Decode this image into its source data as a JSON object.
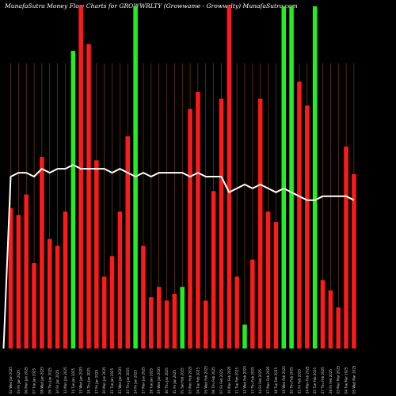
{
  "title": "MunafaSutra  Money Flow  Charts for GROWWRLTY                              (Growwame  -  Growwrlty)  MunafaSutra.com",
  "colors": {
    "background": "#000000",
    "up": "#22ee22",
    "down": "#ff1a1a",
    "line": "#ffffff",
    "grid": "#8a4a00"
  },
  "chart_data": {
    "type": "bar",
    "title": "MunafaSutra  Money Flow  Charts for GROWWRLTY                              (Growwame  -  Growwrlty)  MunafaSutra.com",
    "categories": [
      "02 Wed Jan 2025",
      "03 Fri Jan 2025",
      "06 Mon Jan 2025",
      "07 Tue Jan 2025",
      "08 Wed Jan 2025",
      "09 Thu Jan 2025",
      "10 Fri Jan 2025",
      "13 Mon Jan 2025",
      "14 Tue Jan 2025",
      "15 Wed Jan 2025",
      "16 Thu Jan 2025",
      "17 Fri Jan 2025",
      "20 Mon Jan 2025",
      "21 Tue Jan 2025",
      "22 Wed Jan 2025",
      "23 Thu Jan 2025",
      "24 Fri Jan 2025",
      "27 Mon Jan 2025",
      "28 Tue Jan 2025",
      "29 Wed Jan 2025",
      "30 Thu Jan 2025",
      "31 Fri Jan 2025",
      "01 Sat Feb 2025",
      "03 Mon Feb 2025",
      "04 Tue Feb 2025",
      "05 Wed Feb 2025",
      "06 Thu Feb 2025",
      "07 Fri Feb 2025",
      "10 Mon Feb 2025",
      "11 Tue Feb 2025",
      "12 Wed Feb 2025",
      "13 Thu Feb 2025",
      "14 Fri Feb 2025",
      "17 Mon Feb 2025",
      "18 Tue Feb 2025",
      "19 Wed Feb 2025",
      "20 Thu Feb 2025",
      "21 Fri Feb 2025",
      "24 Mon Feb 2025",
      "25 Tue Feb 2025",
      "27 Thu Feb 2025",
      "28 Fri Feb 2025",
      "03 Mon Mar 2025",
      "04 Tue Mar 2025",
      "05 Wed Mar 2025"
    ],
    "series": [
      {
        "values": [
          41,
          39,
          45,
          25,
          56,
          32,
          30,
          40,
          87,
          100,
          89,
          55,
          21,
          27,
          40,
          62,
          100,
          30,
          15,
          18,
          14,
          16,
          18,
          70,
          75,
          14,
          46,
          73,
          100,
          21,
          7,
          26,
          73,
          40,
          37,
          100,
          100,
          78,
          71,
          100,
          20,
          17,
          12,
          59,
          51
        ],
        "colors": [
          "down",
          "down",
          "down",
          "down",
          "down",
          "down",
          "down",
          "down",
          "up",
          "down",
          "down",
          "down",
          "down",
          "down",
          "down",
          "down",
          "up",
          "down",
          "down",
          "down",
          "down",
          "down",
          "up",
          "down",
          "down",
          "down",
          "down",
          "down",
          "down",
          "down",
          "up",
          "down",
          "down",
          "down",
          "down",
          "up",
          "up",
          "down",
          "down",
          "up",
          "down",
          "down",
          "down",
          "down",
          "down"
        ]
      },
      {
        "name": "money flow line",
        "values": [
          60,
          61,
          61,
          60,
          62,
          61,
          62,
          62,
          63,
          62,
          62,
          62,
          62,
          61,
          62,
          61,
          60,
          61,
          60,
          61,
          61,
          61,
          61,
          60,
          61,
          60,
          60,
          60,
          56,
          57,
          58,
          57,
          58,
          57,
          56,
          57,
          56,
          55,
          54,
          54,
          55,
          55,
          55,
          55,
          54
        ]
      }
    ],
    "ylim": [
      0,
      100
    ],
    "grid": "vertical"
  }
}
